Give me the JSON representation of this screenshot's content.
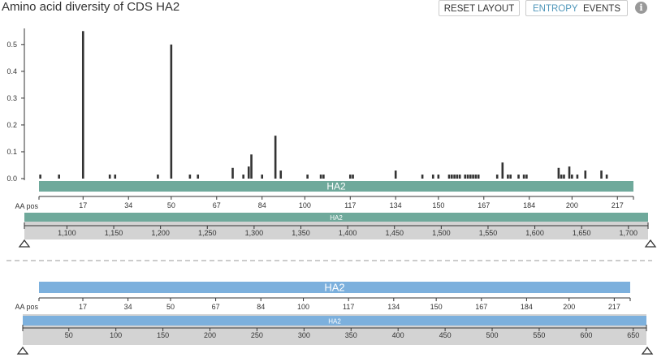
{
  "title": "Amino acid diversity of CDS HA2",
  "buttons": {
    "reset": "RESET LAYOUT",
    "entropy": "ENTROPY",
    "events": "EVENTS"
  },
  "info_icon": "i",
  "colors": {
    "gene_top": "#6FA99B",
    "gene_bottom": "#7CB0DD",
    "bar": "#333333",
    "nav": "#D3D3D3"
  },
  "top_panel": {
    "gene_label": "HA2",
    "aa_pos_label": "AA pos",
    "aa_ticks": [
      "17",
      "34",
      "50",
      "67",
      "84",
      "100",
      "117",
      "134",
      "150",
      "167",
      "184",
      "200",
      "217"
    ],
    "nuc_gene_label": "HA2",
    "nuc_ticks": [
      "1,100",
      "1,150",
      "1,200",
      "1,250",
      "1,300",
      "1,350",
      "1,400",
      "1,450",
      "1,500",
      "1,550",
      "1,600",
      "1,650",
      "1,700"
    ]
  },
  "bottom_panel": {
    "gene_label": "HA2",
    "aa_pos_label": "AA pos",
    "aa_ticks": [
      "17",
      "34",
      "50",
      "67",
      "84",
      "100",
      "117",
      "134",
      "150",
      "167",
      "184",
      "200",
      "217"
    ],
    "nuc_gene_label": "HA2",
    "nuc_ticks": [
      "50",
      "100",
      "150",
      "200",
      "250",
      "300",
      "350",
      "400",
      "450",
      "500",
      "550",
      "600",
      "650"
    ]
  },
  "chart_data": {
    "type": "bar",
    "title": "Amino acid diversity of CDS HA2",
    "xlabel": "AA pos",
    "ylabel": "",
    "yticks": [
      "0.0",
      "0.1",
      "0.2",
      "0.3",
      "0.4",
      "0.5"
    ],
    "ylim": [
      0,
      0.56
    ],
    "xlim": [
      0.5,
      223
    ],
    "x": [
      1,
      8,
      17,
      27,
      29,
      45,
      50,
      57,
      60,
      73,
      77,
      79,
      80,
      84,
      89,
      91,
      101,
      106,
      107,
      117,
      118,
      134,
      144,
      148,
      150,
      154,
      155,
      156,
      157,
      158,
      160,
      161,
      162,
      163,
      164,
      165,
      172,
      174,
      176,
      177,
      180,
      182,
      183,
      195,
      196,
      197,
      199,
      200,
      202,
      205,
      211,
      213
    ],
    "values": [
      0.015,
      0.015,
      0.55,
      0.015,
      0.015,
      0.015,
      0.5,
      0.015,
      0.015,
      0.04,
      0.015,
      0.045,
      0.09,
      0.015,
      0.16,
      0.03,
      0.015,
      0.015,
      0.015,
      0.015,
      0.015,
      0.03,
      0.015,
      0.015,
      0.015,
      0.015,
      0.015,
      0.015,
      0.015,
      0.015,
      0.015,
      0.015,
      0.015,
      0.015,
      0.015,
      0.015,
      0.015,
      0.06,
      0.015,
      0.015,
      0.015,
      0.015,
      0.015,
      0.04,
      0.015,
      0.015,
      0.045,
      0.015,
      0.015,
      0.03,
      0.03,
      0.015
    ]
  }
}
